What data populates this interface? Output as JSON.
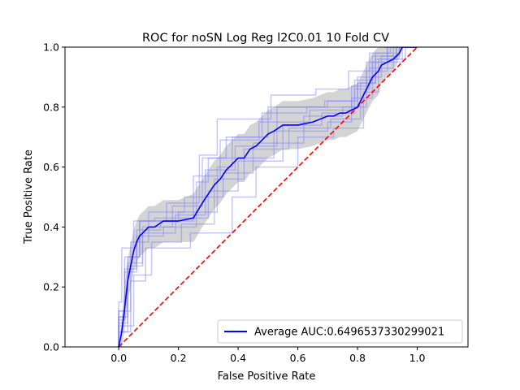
{
  "chart_data": {
    "type": "line",
    "title": "ROC for noSN Log Reg l2C0.01 10 Fold CV",
    "xlabel": "False Positive Rate",
    "ylabel": "True Positive Rate",
    "xlim": [
      -0.18,
      1.17
    ],
    "ylim": [
      0.0,
      1.0
    ],
    "xticks": [
      0.0,
      0.2,
      0.4,
      0.6,
      0.8,
      1.0
    ],
    "xtick_labels": [
      "0.0",
      "0.2",
      "0.4",
      "0.6",
      "0.8",
      "1.0"
    ],
    "yticks": [
      0.0,
      0.2,
      0.4,
      0.6,
      0.8,
      1.0
    ],
    "ytick_labels": [
      "0.0",
      "0.2",
      "0.4",
      "0.6",
      "0.8",
      "1.0"
    ],
    "grid": false,
    "legend": {
      "position": "lower right",
      "entries": [
        {
          "label": "Average AUC:0.6496537330299021",
          "color": "#0000ff",
          "style": "solid"
        }
      ]
    },
    "colors": {
      "mean": "#0000ff",
      "folds": "#8080ff",
      "band": "#a9a9a9",
      "chance": "#ff0000"
    },
    "series": [
      {
        "name": "Average AUC:0.6496537330299021",
        "style": "mean",
        "x": [
          0.0,
          0.01,
          0.02,
          0.03,
          0.04,
          0.05,
          0.06,
          0.07,
          0.08,
          0.1,
          0.12,
          0.15,
          0.2,
          0.25,
          0.28,
          0.3,
          0.32,
          0.34,
          0.36,
          0.38,
          0.4,
          0.42,
          0.44,
          0.46,
          0.48,
          0.5,
          0.52,
          0.55,
          0.6,
          0.65,
          0.7,
          0.72,
          0.74,
          0.76,
          0.78,
          0.8,
          0.81,
          0.82,
          0.83,
          0.84,
          0.85,
          0.86,
          0.87,
          0.88,
          0.9,
          0.92,
          0.94,
          0.95,
          1.0
        ],
        "y": [
          0.0,
          0.05,
          0.13,
          0.22,
          0.27,
          0.32,
          0.35,
          0.37,
          0.38,
          0.4,
          0.4,
          0.42,
          0.42,
          0.43,
          0.48,
          0.51,
          0.54,
          0.56,
          0.59,
          0.61,
          0.63,
          0.63,
          0.66,
          0.67,
          0.69,
          0.71,
          0.72,
          0.74,
          0.74,
          0.75,
          0.77,
          0.77,
          0.78,
          0.78,
          0.79,
          0.8,
          0.82,
          0.84,
          0.86,
          0.88,
          0.9,
          0.91,
          0.92,
          0.94,
          0.95,
          0.96,
          0.98,
          1.0,
          1.0
        ]
      },
      {
        "name": "",
        "style": "band",
        "x": [
          0.0,
          0.01,
          0.02,
          0.03,
          0.04,
          0.05,
          0.06,
          0.07,
          0.08,
          0.1,
          0.12,
          0.15,
          0.2,
          0.25,
          0.28,
          0.3,
          0.32,
          0.34,
          0.36,
          0.38,
          0.4,
          0.42,
          0.44,
          0.46,
          0.48,
          0.5,
          0.52,
          0.55,
          0.6,
          0.65,
          0.7,
          0.72,
          0.74,
          0.76,
          0.78,
          0.8,
          0.81,
          0.82,
          0.83,
          0.84,
          0.85,
          0.86,
          0.87,
          0.88,
          0.9,
          0.92,
          0.94,
          0.95,
          1.0
        ],
        "upper": [
          0.0,
          0.1,
          0.2,
          0.29,
          0.34,
          0.39,
          0.42,
          0.44,
          0.45,
          0.47,
          0.47,
          0.49,
          0.49,
          0.51,
          0.56,
          0.59,
          0.62,
          0.64,
          0.67,
          0.69,
          0.71,
          0.71,
          0.74,
          0.75,
          0.77,
          0.79,
          0.8,
          0.82,
          0.82,
          0.83,
          0.85,
          0.85,
          0.86,
          0.86,
          0.87,
          0.88,
          0.9,
          0.92,
          0.94,
          0.96,
          0.98,
          0.99,
          1.0,
          1.0,
          1.0,
          1.0,
          1.0,
          1.0,
          1.0
        ],
        "lower": [
          0.0,
          0.0,
          0.06,
          0.15,
          0.2,
          0.25,
          0.28,
          0.3,
          0.31,
          0.33,
          0.33,
          0.35,
          0.35,
          0.35,
          0.4,
          0.43,
          0.46,
          0.48,
          0.51,
          0.53,
          0.55,
          0.55,
          0.58,
          0.59,
          0.61,
          0.63,
          0.64,
          0.66,
          0.66,
          0.67,
          0.69,
          0.69,
          0.7,
          0.7,
          0.71,
          0.72,
          0.74,
          0.76,
          0.78,
          0.8,
          0.82,
          0.83,
          0.84,
          0.88,
          0.9,
          0.92,
          0.96,
          1.0,
          1.0
        ]
      },
      {
        "name": "",
        "style": "fold",
        "x": [
          0,
          0,
          0.03,
          0.03,
          0.07,
          0.07,
          0.2,
          0.2,
          0.33,
          0.33,
          0.38,
          0.38,
          0.5,
          0.5,
          0.7,
          0.7,
          0.8,
          0.8,
          0.88,
          0.88,
          0.93,
          0.93,
          1.0
        ],
        "y": [
          0,
          0.05,
          0.05,
          0.3,
          0.3,
          0.42,
          0.42,
          0.45,
          0.45,
          0.6,
          0.6,
          0.7,
          0.7,
          0.8,
          0.8,
          0.82,
          0.82,
          0.9,
          0.9,
          0.97,
          0.97,
          1.0,
          1.0
        ]
      },
      {
        "name": "",
        "style": "fold",
        "x": [
          0,
          0,
          0.02,
          0.02,
          0.06,
          0.06,
          0.15,
          0.15,
          0.26,
          0.26,
          0.3,
          0.3,
          0.52,
          0.52,
          0.7,
          0.7,
          0.78,
          0.78,
          0.85,
          0.85,
          0.95,
          0.95,
          1.0
        ],
        "y": [
          0,
          0.1,
          0.1,
          0.25,
          0.25,
          0.37,
          0.37,
          0.4,
          0.4,
          0.55,
          0.55,
          0.63,
          0.63,
          0.72,
          0.72,
          0.75,
          0.75,
          0.83,
          0.83,
          0.95,
          0.95,
          1.0,
          1.0
        ]
      },
      {
        "name": "",
        "style": "fold",
        "x": [
          0,
          0,
          0.04,
          0.04,
          0.1,
          0.1,
          0.22,
          0.22,
          0.35,
          0.35,
          0.45,
          0.45,
          0.62,
          0.62,
          0.75,
          0.75,
          0.83,
          0.83,
          0.9,
          0.9,
          1.0
        ],
        "y": [
          0,
          0.12,
          0.12,
          0.35,
          0.35,
          0.45,
          0.45,
          0.5,
          0.5,
          0.58,
          0.58,
          0.68,
          0.68,
          0.77,
          0.77,
          0.8,
          0.8,
          0.92,
          0.92,
          1.0,
          1.0
        ]
      },
      {
        "name": "",
        "style": "fold",
        "x": [
          0,
          0,
          0.03,
          0.03,
          0.08,
          0.08,
          0.18,
          0.18,
          0.28,
          0.28,
          0.36,
          0.36,
          0.48,
          0.48,
          0.63,
          0.63,
          0.8,
          0.8,
          0.86,
          0.86,
          0.94,
          0.94,
          1.0
        ],
        "y": [
          0,
          0.08,
          0.08,
          0.28,
          0.28,
          0.4,
          0.4,
          0.47,
          0.47,
          0.63,
          0.63,
          0.7,
          0.7,
          0.78,
          0.78,
          0.8,
          0.8,
          0.88,
          0.88,
          0.98,
          0.98,
          1.0,
          1.0
        ]
      },
      {
        "name": "",
        "style": "fold",
        "x": [
          0,
          0,
          0.01,
          0.01,
          0.05,
          0.05,
          0.12,
          0.12,
          0.3,
          0.3,
          0.4,
          0.4,
          0.55,
          0.55,
          0.68,
          0.68,
          0.79,
          0.79,
          0.84,
          0.84,
          0.92,
          0.92,
          1.0
        ],
        "y": [
          0,
          0.15,
          0.15,
          0.33,
          0.33,
          0.42,
          0.42,
          0.43,
          0.43,
          0.52,
          0.52,
          0.62,
          0.62,
          0.74,
          0.74,
          0.78,
          0.78,
          0.86,
          0.86,
          0.93,
          0.93,
          1.0,
          1.0
        ]
      },
      {
        "name": "",
        "style": "fold",
        "x": [
          0,
          0,
          0.04,
          0.04,
          0.09,
          0.09,
          0.24,
          0.24,
          0.38,
          0.38,
          0.46,
          0.46,
          0.6,
          0.6,
          0.72,
          0.72,
          0.82,
          0.82,
          0.87,
          0.87,
          0.96,
          0.96,
          1.0
        ],
        "y": [
          0,
          0.05,
          0.05,
          0.22,
          0.22,
          0.33,
          0.33,
          0.38,
          0.38,
          0.5,
          0.5,
          0.6,
          0.6,
          0.7,
          0.7,
          0.73,
          0.73,
          0.85,
          0.85,
          0.96,
          0.96,
          1.0,
          1.0
        ]
      },
      {
        "name": "",
        "style": "fold",
        "x": [
          0,
          0,
          0.02,
          0.02,
          0.07,
          0.07,
          0.16,
          0.16,
          0.27,
          0.27,
          0.33,
          0.33,
          0.51,
          0.51,
          0.66,
          0.66,
          0.77,
          0.77,
          0.84,
          0.84,
          0.91,
          0.91,
          1.0
        ],
        "y": [
          0,
          0.12,
          0.12,
          0.3,
          0.3,
          0.42,
          0.42,
          0.48,
          0.48,
          0.64,
          0.64,
          0.76,
          0.76,
          0.84,
          0.84,
          0.86,
          0.86,
          0.92,
          0.92,
          0.98,
          0.98,
          1.0,
          1.0
        ]
      },
      {
        "name": "",
        "style": "fold",
        "x": [
          0,
          0,
          0.05,
          0.05,
          0.11,
          0.11,
          0.21,
          0.21,
          0.32,
          0.32,
          0.42,
          0.42,
          0.57,
          0.57,
          0.71,
          0.71,
          0.81,
          0.81,
          0.86,
          0.86,
          0.93,
          0.93,
          1.0
        ],
        "y": [
          0,
          0.07,
          0.07,
          0.24,
          0.24,
          0.35,
          0.35,
          0.41,
          0.41,
          0.56,
          0.56,
          0.66,
          0.66,
          0.73,
          0.73,
          0.76,
          0.76,
          0.88,
          0.88,
          0.96,
          0.96,
          1.0,
          1.0
        ]
      },
      {
        "name": "",
        "style": "fold",
        "x": [
          0,
          0,
          0.03,
          0.03,
          0.08,
          0.08,
          0.19,
          0.19,
          0.29,
          0.29,
          0.39,
          0.39,
          0.53,
          0.53,
          0.69,
          0.69,
          0.79,
          0.79,
          0.85,
          0.85,
          0.94,
          0.94,
          1.0
        ],
        "y": [
          0,
          0.1,
          0.1,
          0.27,
          0.27,
          0.38,
          0.38,
          0.44,
          0.44,
          0.59,
          0.59,
          0.67,
          0.67,
          0.8,
          0.8,
          0.82,
          0.82,
          0.89,
          0.89,
          0.97,
          0.97,
          1.0,
          1.0
        ]
      },
      {
        "name": "",
        "style": "fold",
        "x": [
          0,
          0,
          0.02,
          0.02,
          0.06,
          0.06,
          0.14,
          0.14,
          0.25,
          0.25,
          0.34,
          0.34,
          0.47,
          0.47,
          0.64,
          0.64,
          0.78,
          0.78,
          0.83,
          0.83,
          0.9,
          0.9,
          1.0
        ],
        "y": [
          0,
          0.09,
          0.09,
          0.26,
          0.26,
          0.39,
          0.39,
          0.42,
          0.42,
          0.57,
          0.57,
          0.69,
          0.69,
          0.75,
          0.75,
          0.79,
          0.79,
          0.87,
          0.87,
          0.95,
          0.95,
          1.0,
          1.0
        ]
      },
      {
        "name": "",
        "style": "chance",
        "x": [
          0.0,
          1.0
        ],
        "y": [
          0.0,
          1.0
        ]
      }
    ]
  }
}
